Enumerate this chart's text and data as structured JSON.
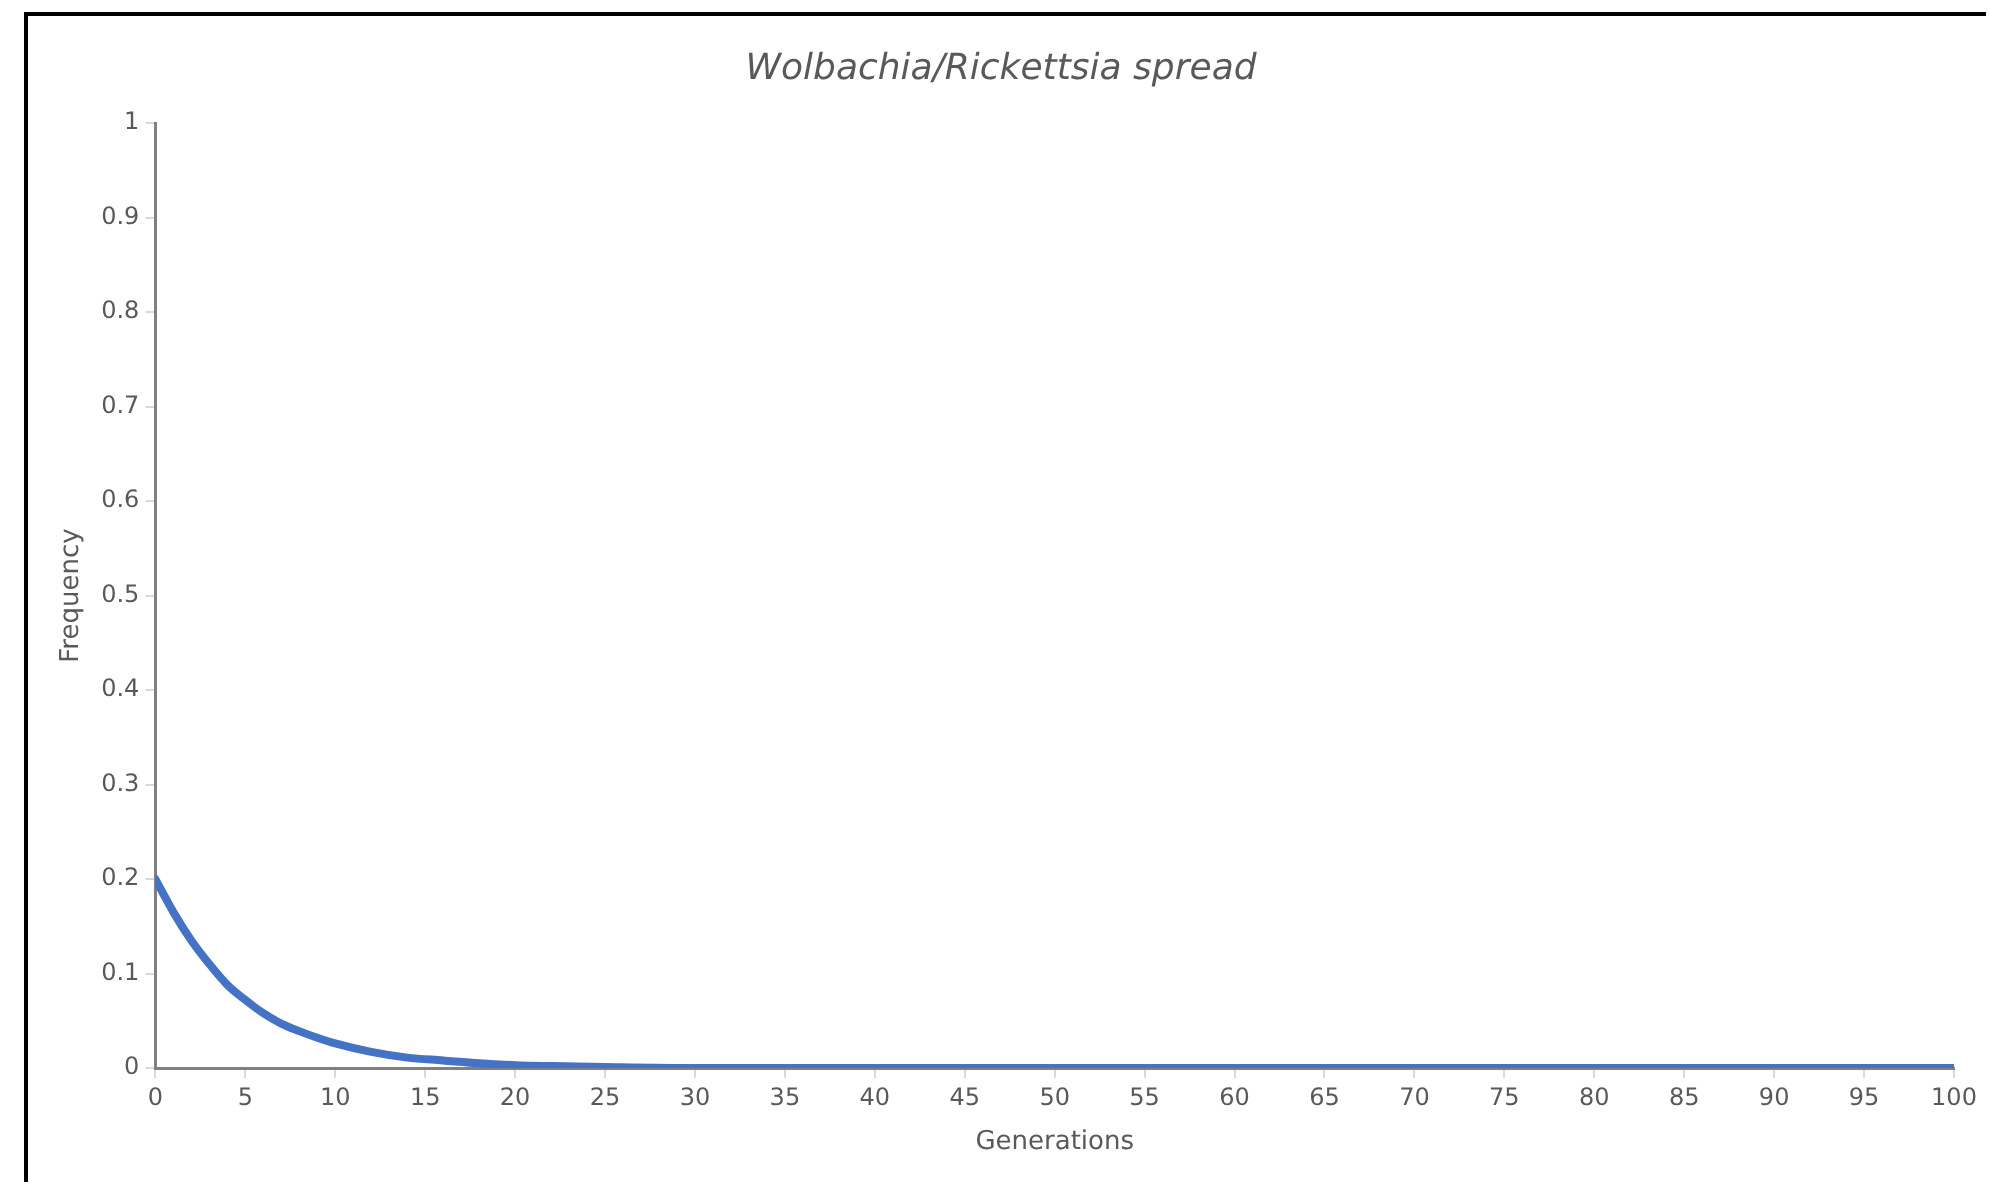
{
  "chart_data": {
    "type": "line",
    "title": "Wolbachia/Rickettsia spread",
    "xlabel": "Generations",
    "ylabel": "Frequency",
    "x": [
      0,
      1,
      2,
      3,
      4,
      5,
      6,
      7,
      8,
      9,
      10,
      12,
      14,
      16,
      18,
      20,
      22,
      25,
      30,
      40,
      50,
      60,
      70,
      80,
      90,
      100
    ],
    "series": [
      {
        "color": "#4472c4",
        "values": [
          0.2,
          0.165,
          0.135,
          0.11,
          0.088,
          0.072,
          0.058,
          0.047,
          0.039,
          0.032,
          0.026,
          0.017,
          0.011,
          0.008,
          0.005,
          0.003,
          0.002,
          0.001,
          0,
          0,
          0,
          0,
          0,
          0,
          0,
          0
        ]
      }
    ],
    "xlim": [
      0,
      100
    ],
    "xticks": [
      0,
      5,
      10,
      15,
      20,
      25,
      30,
      35,
      40,
      45,
      50,
      55,
      60,
      65,
      70,
      75,
      80,
      85,
      90,
      95,
      100
    ],
    "ylim": [
      0,
      1
    ],
    "yticks": [
      0,
      0.1,
      0.2,
      0.3,
      0.4,
      0.5,
      0.6,
      0.7,
      0.8,
      0.9,
      1
    ],
    "grid": false,
    "legend": false,
    "marker": "none",
    "line_style": "solid"
  }
}
